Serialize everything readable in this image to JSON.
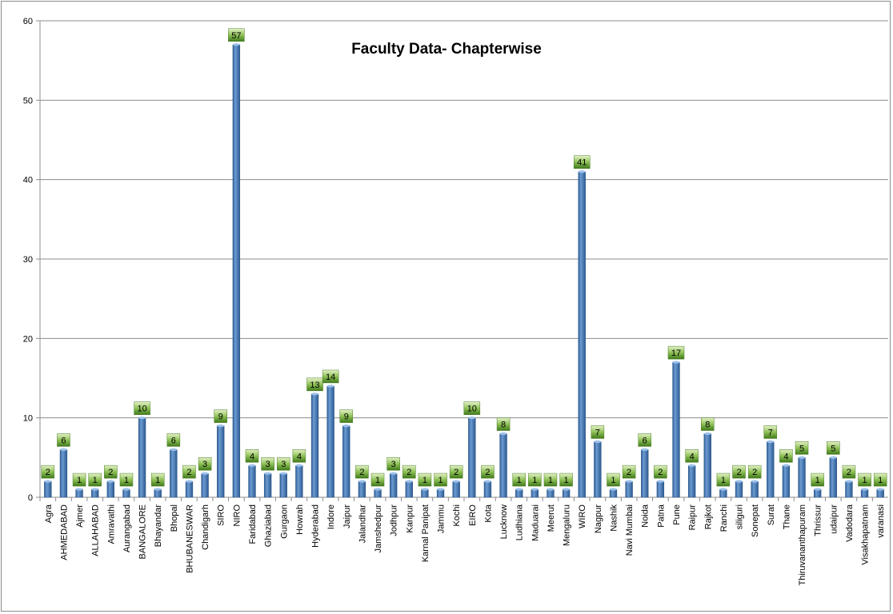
{
  "chart_data": {
    "type": "bar",
    "title": "Faculty Data- Chapterwise",
    "xlabel": "",
    "ylabel": "",
    "ylim": [
      0,
      60
    ],
    "yticks": [
      0,
      10,
      20,
      30,
      40,
      50,
      60
    ],
    "grid": true,
    "legend": "none",
    "bar_color": "#4f81bd",
    "label_color": "#77a33a",
    "categories": [
      "Agra",
      "AHMEDABAD",
      "Ajmer",
      "ALLAHABAD",
      "Amravathi",
      "Aurangabad",
      "BANGALORE",
      "Bhayandar",
      "Bhopal",
      "BHUBANESWAR",
      "Chandigarh",
      "SIRO",
      "NIRO",
      "Faridabad",
      "Ghaziabad",
      "Gurgaon",
      "Howrah",
      "Hyderabad",
      "Indore",
      "Jaipur",
      "Jalandhar",
      "Jamshedpur",
      "Jodhpur",
      "Kanpur",
      "Karnal Panipat",
      "Jammu",
      "Kochi",
      "EIRO",
      "Kota",
      "Lucknow",
      "Ludhiana",
      "Maduarai",
      "Meerut",
      "Mengaluru",
      "WIRO",
      "Nagpur",
      "Nashik",
      "Navi Mumbai",
      "Noida",
      "Patna",
      "Pune",
      "Raipur",
      "Rajkot",
      "Ranchi",
      "siliguri",
      "Sonepat",
      "Surat",
      "Thane",
      "Thiruvananthapuram",
      "Thrissur",
      "udaipur",
      "Vadodara",
      "Visakhapatnam",
      "varanasi"
    ],
    "values": [
      2,
      6,
      1,
      1,
      2,
      1,
      10,
      1,
      6,
      2,
      3,
      9,
      57,
      4,
      3,
      3,
      4,
      13,
      14,
      9,
      2,
      1,
      3,
      2,
      1,
      1,
      2,
      10,
      2,
      8,
      1,
      1,
      1,
      1,
      41,
      7,
      1,
      2,
      6,
      2,
      17,
      4,
      8,
      1,
      2,
      2,
      7,
      4,
      5,
      1,
      5,
      2,
      1,
      1
    ]
  }
}
